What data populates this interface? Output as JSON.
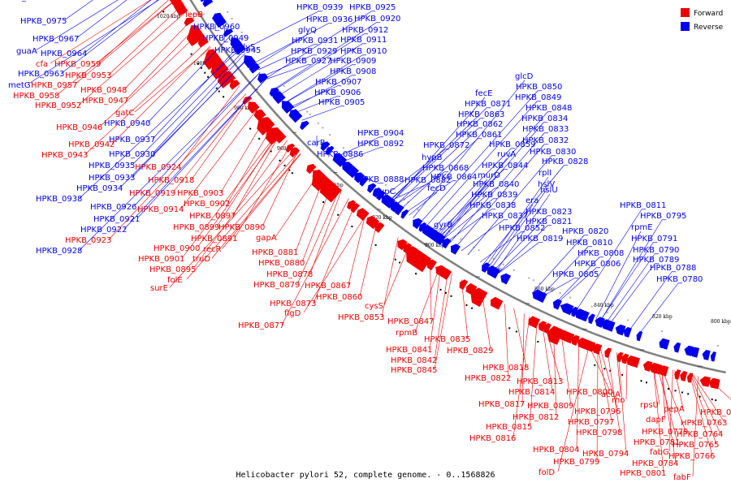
{
  "caption": "Helicobacter pylori 52, complete genome. - 0..1568826",
  "legend": [
    {
      "label": "Forward",
      "color": "#ee0000"
    },
    {
      "label": "Reverse",
      "color": "#0000ee"
    }
  ],
  "colors": {
    "forward": "#ee0000",
    "reverse": "#0000ee",
    "backbone": "#808080"
  },
  "ticks": [
    "1020 kbp",
    "1000 kbp",
    "980 kbp",
    "960 kbp",
    "940 kbp",
    "920 kbp",
    "900 kbp",
    "880 kbp",
    "860 kbp",
    "840 kbp",
    "820 kbp",
    "800 kbp"
  ],
  "labels": [
    {
      "text": "HPKB_0975",
      "s": "r"
    },
    {
      "text": "HPKB_0967",
      "s": "r"
    },
    {
      "text": "guaA",
      "s": "r"
    },
    {
      "text": "HPKB_0964",
      "s": "r"
    },
    {
      "text": "cfa",
      "s": "f"
    },
    {
      "text": "HPKB_0959",
      "s": "f"
    },
    {
      "text": "HPKB_0963",
      "s": "r"
    },
    {
      "text": "HPKB_0953",
      "s": "f"
    },
    {
      "text": "metG",
      "s": "r"
    },
    {
      "text": "HPKB_0957",
      "s": "f"
    },
    {
      "text": "HPKB_0958",
      "s": "f"
    },
    {
      "text": "HPKB_0948",
      "s": "f"
    },
    {
      "text": "HPKB_0947",
      "s": "f"
    },
    {
      "text": "HPKB_0952",
      "s": "f"
    },
    {
      "text": "gatC",
      "s": "f"
    },
    {
      "text": "HPKB_0940",
      "s": "r"
    },
    {
      "text": "HPKB_0946",
      "s": "f"
    },
    {
      "text": "HPKB_0937",
      "s": "r"
    },
    {
      "text": "HPKB_0942",
      "s": "f"
    },
    {
      "text": "HPKB_0943",
      "s": "f"
    },
    {
      "text": "HPKB_0930",
      "s": "r"
    },
    {
      "text": "HPKB_0935",
      "s": "r"
    },
    {
      "text": "HPKB_0924",
      "s": "f"
    },
    {
      "text": "HPKB_0933",
      "s": "r"
    },
    {
      "text": "HPKB_0918",
      "s": "f"
    },
    {
      "text": "HPKB_0934",
      "s": "r"
    },
    {
      "text": "HPKB_0919",
      "s": "f"
    },
    {
      "text": "HPKB_0903",
      "s": "f"
    },
    {
      "text": "HPKB_0938",
      "s": "r"
    },
    {
      "text": "HPKB_0902",
      "s": "f"
    },
    {
      "text": "HPKB_0926",
      "s": "r"
    },
    {
      "text": "HPKB_0914",
      "s": "f"
    },
    {
      "text": "HPKB_0921",
      "s": "r"
    },
    {
      "text": "HPKB_0897",
      "s": "f"
    },
    {
      "text": "HPKB_0922",
      "s": "r"
    },
    {
      "text": "HPKB_0899",
      "s": "f"
    },
    {
      "text": "HPKB_0890",
      "s": "f"
    },
    {
      "text": "HPKB_0891",
      "s": "f"
    },
    {
      "text": "HPKB_0923",
      "s": "f"
    },
    {
      "text": "gapA",
      "s": "f"
    },
    {
      "text": "HPKB_0928",
      "s": "r"
    },
    {
      "text": "HPKB_0900",
      "s": "f"
    },
    {
      "text": "recR",
      "s": "f"
    },
    {
      "text": "HPKB_0881",
      "s": "f"
    },
    {
      "text": "HPKB_0901",
      "s": "f"
    },
    {
      "text": "truD",
      "s": "f"
    },
    {
      "text": "HPKB_0880",
      "s": "f"
    },
    {
      "text": "HPKB_0895",
      "s": "f"
    },
    {
      "text": "HPKB_0878",
      "s": "f"
    },
    {
      "text": "folE",
      "s": "f"
    },
    {
      "text": "HPKB_0879",
      "s": "f"
    },
    {
      "text": "HPKB_0867",
      "s": "f"
    },
    {
      "text": "surE",
      "s": "f"
    },
    {
      "text": "HPKB_0860",
      "s": "f"
    },
    {
      "text": "HPKB_0873",
      "s": "f"
    },
    {
      "text": "cysS",
      "s": "f"
    },
    {
      "text": "flgD",
      "s": "f"
    },
    {
      "text": "HPKB_0853",
      "s": "f"
    },
    {
      "text": "HPKB_0877",
      "s": "f"
    },
    {
      "text": "HPKB_0847",
      "s": "f"
    },
    {
      "text": "rpmB",
      "s": "f"
    },
    {
      "text": "HPKB_0835",
      "s": "f"
    },
    {
      "text": "HPKB_0841",
      "s": "f"
    },
    {
      "text": "HPKB_0829",
      "s": "f"
    },
    {
      "text": "HPKB_0842",
      "s": "f"
    },
    {
      "text": "HPKB_0845",
      "s": "f"
    },
    {
      "text": "HPKB_0818",
      "s": "f"
    },
    {
      "text": "HPKB_0822",
      "s": "f"
    },
    {
      "text": "HPKB_0813",
      "s": "f"
    },
    {
      "text": "HPKB_0814",
      "s": "f"
    },
    {
      "text": "HPKB_0800",
      "s": "f"
    },
    {
      "text": "rho",
      "s": "f"
    },
    {
      "text": "HPKB_0817",
      "s": "f"
    },
    {
      "text": "HPKB_0809",
      "s": "f"
    },
    {
      "text": "HPKB_0796",
      "s": "f"
    },
    {
      "text": "accA",
      "s": "f"
    },
    {
      "text": "rpsU",
      "s": "f"
    },
    {
      "text": "pepA",
      "s": "f"
    },
    {
      "text": "HPKB_0762",
      "s": "f"
    },
    {
      "text": "HPKB_0812",
      "s": "f"
    },
    {
      "text": "HPKB_0797",
      "s": "f"
    },
    {
      "text": "dapF",
      "s": "f"
    },
    {
      "text": "HPKB_0763",
      "s": "f"
    },
    {
      "text": "HPKB_0815",
      "s": "f"
    },
    {
      "text": "HPKB_0798",
      "s": "f"
    },
    {
      "text": "HPKB_0779",
      "s": "f"
    },
    {
      "text": "HPKB_0764",
      "s": "f"
    },
    {
      "text": "HPKB_0816",
      "s": "f"
    },
    {
      "text": "HPKB_0781",
      "s": "f"
    },
    {
      "text": "fabG",
      "s": "f"
    },
    {
      "text": "HPKB_0765",
      "s": "f"
    },
    {
      "text": "HPKB_0804",
      "s": "f"
    },
    {
      "text": "HPKB_0794",
      "s": "f"
    },
    {
      "text": "HPKB_0799",
      "s": "f"
    },
    {
      "text": "HPKB_0784",
      "s": "f"
    },
    {
      "text": "HPKB_0766",
      "s": "f"
    },
    {
      "text": "folD",
      "s": "f"
    },
    {
      "text": "HPKB_0801",
      "s": "f"
    },
    {
      "text": "fabF",
      "s": "f"
    },
    {
      "text": "lepB",
      "s": "f"
    },
    {
      "text": "HPKB_0960",
      "s": "r"
    },
    {
      "text": "HPKB_0949",
      "s": "r"
    },
    {
      "text": "HPKB_0945",
      "s": "r"
    },
    {
      "text": "glyS",
      "s": "r"
    },
    {
      "text": "HPKB_0939",
      "s": "r"
    },
    {
      "text": "HPKB_0936",
      "s": "r"
    },
    {
      "text": "glyQ",
      "s": "r"
    },
    {
      "text": "HPKB_0931",
      "s": "r"
    },
    {
      "text": "HPKB_0929",
      "s": "r"
    },
    {
      "text": "HPKB_0927",
      "s": "r"
    },
    {
      "text": "HPKB_0925",
      "s": "r"
    },
    {
      "text": "HPKB_0920",
      "s": "r"
    },
    {
      "text": "HPKB_0912",
      "s": "r"
    },
    {
      "text": "HPKB_0911",
      "s": "r"
    },
    {
      "text": "HPKB_0910",
      "s": "r"
    },
    {
      "text": "HPKB_0909",
      "s": "r"
    },
    {
      "text": "HPKB_0908",
      "s": "r"
    },
    {
      "text": "HPKB_0907",
      "s": "r"
    },
    {
      "text": "HPKB_0906",
      "s": "r"
    },
    {
      "text": "HPKB_0905",
      "s": "r"
    },
    {
      "text": "HPKB_0904",
      "s": "r"
    },
    {
      "text": "carB",
      "s": "r"
    },
    {
      "text": "HPKB_0892",
      "s": "r"
    },
    {
      "text": "HPKB_0886",
      "s": "r"
    },
    {
      "text": "HPKB_0888",
      "s": "r"
    },
    {
      "text": "HPKB_0882",
      "s": "r"
    },
    {
      "text": "hypC",
      "s": "r"
    },
    {
      "text": "HPKB_0872",
      "s": "r"
    },
    {
      "text": "hypB",
      "s": "r"
    },
    {
      "text": "HPKB_0868",
      "s": "r"
    },
    {
      "text": "HPKB_0864",
      "s": "r"
    },
    {
      "text": "fecD",
      "s": "r"
    },
    {
      "text": "fecE",
      "s": "r"
    },
    {
      "text": "HPKB_0871",
      "s": "r"
    },
    {
      "text": "HPKB_0863",
      "s": "r"
    },
    {
      "text": "HPKB_0862",
      "s": "r"
    },
    {
      "text": "HPKB_0861",
      "s": "r"
    },
    {
      "text": "HPKB_0859",
      "s": "r"
    },
    {
      "text": "ruvA",
      "s": "r"
    },
    {
      "text": "HPKB_0844",
      "s": "r"
    },
    {
      "text": "murD",
      "s": "r"
    },
    {
      "text": "HPKB_0840",
      "s": "r"
    },
    {
      "text": "HPKB_0839",
      "s": "r"
    },
    {
      "text": "HPKB_0838",
      "s": "r"
    },
    {
      "text": "HPKB_0837",
      "s": "r"
    },
    {
      "text": "gyrB",
      "s": "r"
    },
    {
      "text": "HPKB_0852",
      "s": "r"
    },
    {
      "text": "glcD",
      "s": "r"
    },
    {
      "text": "HPKB_0850",
      "s": "r"
    },
    {
      "text": "HPKB_0849",
      "s": "r"
    },
    {
      "text": "HPKB_0848",
      "s": "r"
    },
    {
      "text": "HPKB_0834",
      "s": "r"
    },
    {
      "text": "HPKB_0833",
      "s": "r"
    },
    {
      "text": "HPKB_0832",
      "s": "r"
    },
    {
      "text": "HPKB_0830",
      "s": "r"
    },
    {
      "text": "HPKB_0828",
      "s": "r"
    },
    {
      "text": "rplI",
      "s": "r"
    },
    {
      "text": "hslV",
      "s": "r"
    },
    {
      "text": "hslU",
      "s": "r"
    },
    {
      "text": "era",
      "s": "r"
    },
    {
      "text": "HPKB_0823",
      "s": "r"
    },
    {
      "text": "HPKB_0821",
      "s": "r"
    },
    {
      "text": "HPKB_0819",
      "s": "r"
    },
    {
      "text": "HPKB_0820",
      "s": "r"
    },
    {
      "text": "HPKB_0810",
      "s": "r"
    },
    {
      "text": "HPKB_0808",
      "s": "r"
    },
    {
      "text": "HPKB_0806",
      "s": "r"
    },
    {
      "text": "HPKB_0805",
      "s": "r"
    },
    {
      "text": "HPKB_0811",
      "s": "r"
    },
    {
      "text": "HPKB_0795",
      "s": "r"
    },
    {
      "text": "rpmE",
      "s": "r"
    },
    {
      "text": "HPKB_0791",
      "s": "r"
    },
    {
      "text": "HPKB_0790",
      "s": "r"
    },
    {
      "text": "HPKB_0789",
      "s": "r"
    },
    {
      "text": "HPKB_0788",
      "s": "r"
    },
    {
      "text": "HPKB_0780",
      "s": "r"
    },
    {
      "text": "HPKB_0777",
      "s": "r"
    }
  ]
}
